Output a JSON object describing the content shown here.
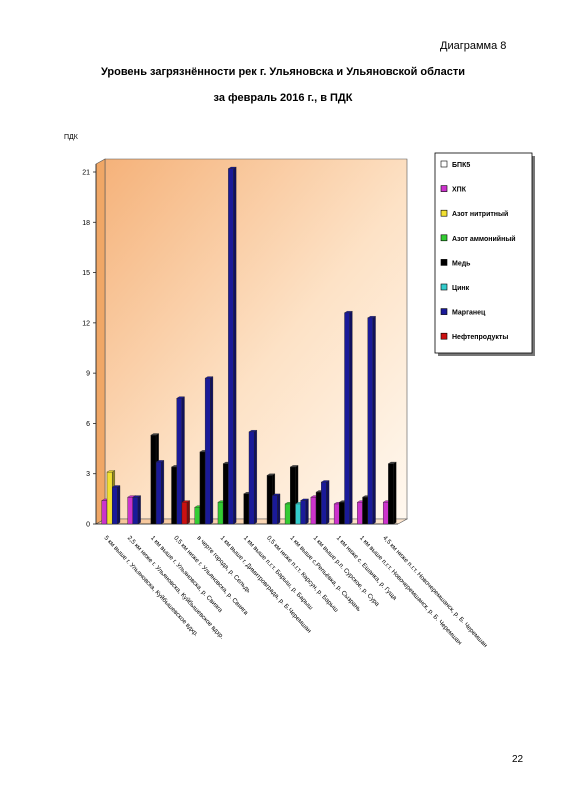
{
  "page": {
    "diagram_label": "Диаграмма 8",
    "title_line1": "Уровень загрязнённости рек г. Ульяновска и Ульяновской области",
    "title_line2": "за февраль 2016 г., в ПДК",
    "page_number": "22"
  },
  "chart_data": {
    "type": "bar",
    "title": "Уровень загрязнённости рек г. Ульяновска и Ульяновской области за февраль 2016 г., в ПДК",
    "ylabel": "ПДК",
    "ylim": [
      0,
      21
    ],
    "yticks": [
      0,
      3,
      6,
      9,
      12,
      15,
      18,
      21
    ],
    "legend_position": "right",
    "categories": [
      "5 км выше г. Ульяновска, Куйбышевское вдхр.",
      "2,5 км ниже г. Ульяновска, Куйбышевское вдхр.",
      "1 км выше г. Ульяновска, р. Свияга",
      "0,5 км ниже г. Ульяновска, р. Свияга",
      "в черте города, р. Сельдь",
      "1 км выше г. Димитровграда, р. Б.Черемшан",
      "1 км выше п.г.т. Барыш, р. Барыш",
      "0,5 км ниже п.г.т. Карсун, р. Барыш",
      "1 км выше с.Репьёвка, р. Сызрань",
      "1 км выше р.п. Сурское, р. Сура",
      "1 км ниже с. Ешанка, р. Гуща",
      "1 км выше п.г.т. Новочеремшанск, р. Б. Черемшан",
      "4,5 км ниже п.г.т. Новочеремшанск, р. Б. Черемшан"
    ],
    "series": [
      {
        "name": "БПК5",
        "color": "#ffffff",
        "values": [
          null,
          null,
          null,
          null,
          null,
          null,
          null,
          null,
          null,
          null,
          null,
          null,
          null
        ]
      },
      {
        "name": "ХПК",
        "color": "#cc33cc",
        "values": [
          1.4,
          1.6,
          null,
          null,
          null,
          null,
          null,
          null,
          null,
          1.6,
          1.2,
          1.3,
          1.3
        ]
      },
      {
        "name": "Азот нитритный",
        "color": "#f2e033",
        "values": [
          3.1,
          null,
          null,
          null,
          null,
          null,
          null,
          null,
          null,
          null,
          null,
          null,
          null
        ]
      },
      {
        "name": "Азот аммонийный",
        "color": "#33cc33",
        "values": [
          null,
          null,
          null,
          null,
          1.0,
          1.3,
          null,
          null,
          1.2,
          null,
          null,
          null,
          null
        ]
      },
      {
        "name": "Медь",
        "color": "#000000",
        "values": [
          null,
          null,
          5.3,
          3.4,
          4.3,
          3.6,
          1.8,
          2.9,
          3.4,
          1.9,
          1.3,
          1.6,
          3.6
        ]
      },
      {
        "name": "Цинк",
        "color": "#33cccc",
        "values": [
          null,
          null,
          null,
          null,
          null,
          null,
          null,
          null,
          1.2,
          null,
          null,
          null,
          null
        ]
      },
      {
        "name": "Марганец",
        "color": "#1a1a99",
        "values": [
          2.2,
          1.6,
          3.7,
          7.5,
          8.7,
          21.2,
          5.5,
          1.7,
          1.4,
          2.5,
          12.6,
          12.3,
          null
        ]
      },
      {
        "name": "Нефтепродукты",
        "color": "#cc1111",
        "values": [
          null,
          null,
          null,
          1.3,
          null,
          null,
          null,
          null,
          null,
          null,
          null,
          null,
          null
        ]
      }
    ]
  }
}
